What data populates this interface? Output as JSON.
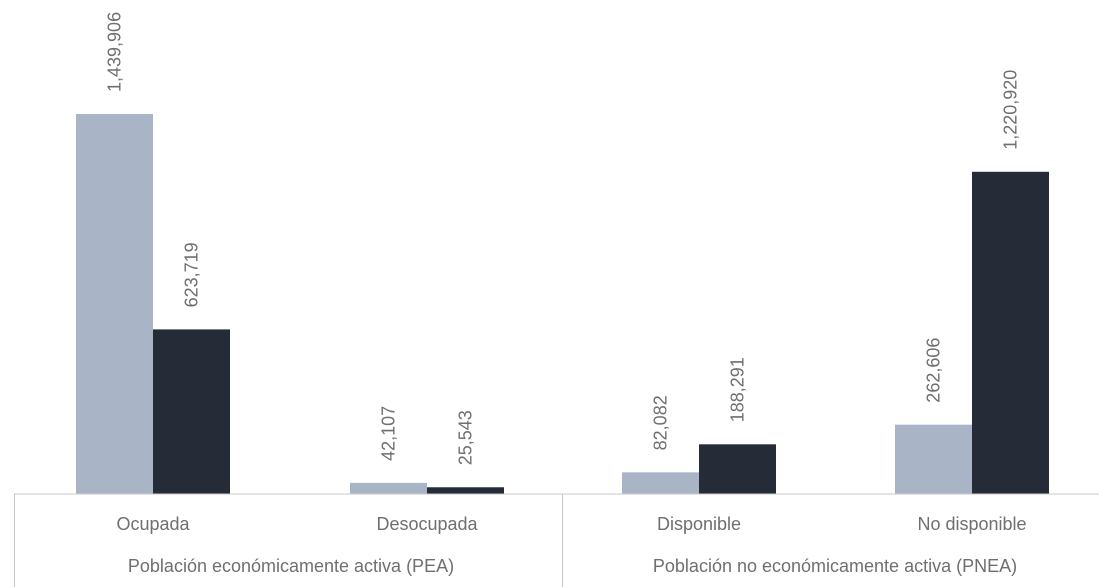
{
  "chart_data": {
    "type": "bar",
    "title": "",
    "xlabel": "",
    "ylabel": "",
    "groups": [
      {
        "label": "Población económicamente activa (PEA)",
        "categories": [
          "Ocupada",
          "Desocupada"
        ]
      },
      {
        "label": "Población no económicamente activa (PNEA)",
        "categories": [
          "Disponible",
          "No disponible"
        ]
      }
    ],
    "categories": [
      "Ocupada",
      "Desocupada",
      "Disponible",
      "No disponible"
    ],
    "series": [
      {
        "values": [
          1439906,
          42107,
          82082,
          262606
        ],
        "color": "#aab4c7"
      },
      {
        "values": [
          623719,
          25543,
          188291,
          1220920
        ],
        "color": "#252b37"
      }
    ],
    "data_labels": [
      [
        "1,439,906",
        "42,107",
        "82,082",
        "262,606"
      ],
      [
        "623,719",
        "25,543",
        "188,291",
        "1,220,920"
      ]
    ],
    "ylim": [
      0,
      1439906
    ],
    "legend": "none",
    "grid": false,
    "axis_color": "#c8c8c8"
  }
}
